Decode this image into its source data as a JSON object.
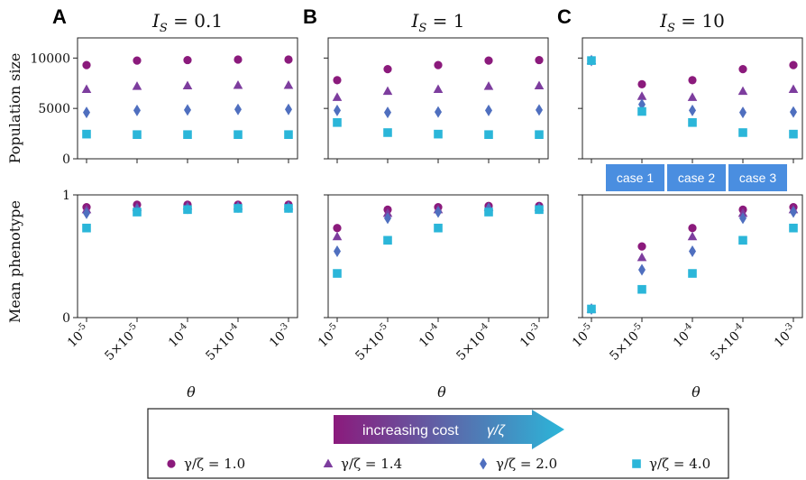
{
  "chart_data": {
    "type": "scatter",
    "xlabel": "θ",
    "x_categories": [
      "10^{-5}",
      "5×10^{-5}",
      "10^{-4}",
      "5×10^{-4}",
      "10^{-3}"
    ],
    "series_styles": [
      {
        "label": "γ/ζ = 1.0",
        "color": "#8b1a7c",
        "marker": "circle"
      },
      {
        "label": "γ/ζ = 1.4",
        "color": "#7d3d9e",
        "marker": "triangle"
      },
      {
        "label": "γ/ζ = 2.0",
        "color": "#4f6fbf",
        "marker": "diamond"
      },
      {
        "label": "γ/ζ = 4.0",
        "color": "#2bb6d9",
        "marker": "square"
      }
    ],
    "panels": [
      {
        "letter": "A",
        "title": "I_S = 0.1",
        "population_size": [
          [
            9300,
            9750,
            9800,
            9850,
            9850
          ],
          [
            6900,
            7200,
            7250,
            7300,
            7300
          ],
          [
            4600,
            4800,
            4850,
            4900,
            4900
          ],
          [
            2450,
            2400,
            2400,
            2400,
            2400
          ]
        ],
        "mean_phenotype": [
          [
            0.9,
            0.92,
            0.92,
            0.92,
            0.92
          ],
          [
            0.88,
            0.9,
            0.91,
            0.91,
            0.91
          ],
          [
            0.85,
            0.88,
            0.89,
            0.9,
            0.9
          ],
          [
            0.73,
            0.86,
            0.88,
            0.89,
            0.89
          ]
        ]
      },
      {
        "letter": "B",
        "title": "I_S = 1",
        "population_size": [
          [
            7800,
            8900,
            9300,
            9750,
            9800
          ],
          [
            6100,
            6700,
            6900,
            7200,
            7250
          ],
          [
            4800,
            4600,
            4650,
            4800,
            4850
          ],
          [
            3600,
            2600,
            2450,
            2400,
            2400
          ]
        ],
        "mean_phenotype": [
          [
            0.73,
            0.88,
            0.9,
            0.91,
            0.91
          ],
          [
            0.66,
            0.85,
            0.88,
            0.9,
            0.9
          ],
          [
            0.54,
            0.81,
            0.86,
            0.89,
            0.89
          ],
          [
            0.36,
            0.63,
            0.73,
            0.86,
            0.88
          ]
        ]
      },
      {
        "letter": "C",
        "title": "I_S = 10",
        "population_size": [
          [
            9750,
            7400,
            7800,
            8900,
            9300
          ],
          [
            9750,
            6200,
            6100,
            6700,
            6900
          ],
          [
            9750,
            5400,
            4800,
            4600,
            4650
          ],
          [
            9750,
            4700,
            3600,
            2600,
            2450
          ]
        ],
        "mean_phenotype": [
          [
            0.07,
            0.58,
            0.73,
            0.88,
            0.9
          ],
          [
            0.07,
            0.49,
            0.66,
            0.85,
            0.88
          ],
          [
            0.07,
            0.39,
            0.54,
            0.81,
            0.86
          ],
          [
            0.07,
            0.23,
            0.36,
            0.63,
            0.73
          ]
        ]
      }
    ],
    "top_ylabel": "Population size",
    "top_yticks": [
      "0",
      "5000",
      "10000"
    ],
    "top_ylim": [
      0,
      12000
    ],
    "bottom_ylabel": "Mean phenotype",
    "bottom_yticks": [
      "0",
      "1"
    ],
    "bottom_ylim": [
      0,
      1
    ],
    "cases": [
      "case 1",
      "case 2",
      "case 3"
    ],
    "gradient_label": "increasing cost",
    "gradient_sublabel": "γ/ζ",
    "gradient_colors": [
      "#8b1a7c",
      "#2bb6d9"
    ]
  }
}
